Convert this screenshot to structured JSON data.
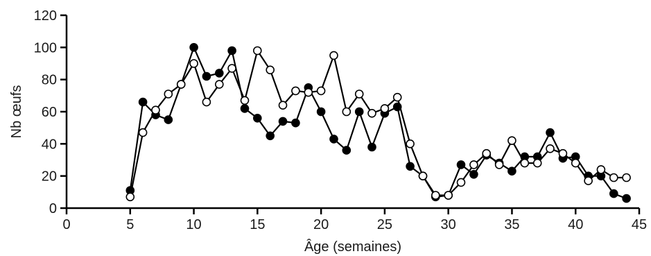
{
  "chart_data": {
    "type": "line",
    "xlabel": "Âge (semaines)",
    "ylabel": "Nb œufs",
    "xlim": [
      0,
      45
    ],
    "ylim": [
      0,
      120
    ],
    "xticks": [
      0,
      5,
      10,
      15,
      20,
      25,
      30,
      35,
      40,
      45
    ],
    "yticks": [
      0,
      20,
      40,
      60,
      80,
      100,
      120
    ],
    "grid": false,
    "series": [
      {
        "marker": "filled-circle",
        "color": "#000000",
        "x": [
          5,
          6,
          7,
          8,
          9,
          10,
          11,
          12,
          13,
          14,
          15,
          16,
          17,
          18,
          19,
          20,
          21,
          22,
          23,
          24,
          25,
          26,
          27,
          28,
          29,
          30,
          31,
          32,
          33,
          34,
          35,
          36,
          37,
          38,
          39,
          40,
          41,
          42,
          43,
          44
        ],
        "y": [
          11,
          66,
          58,
          55,
          77,
          100,
          82,
          84,
          98,
          62,
          56,
          45,
          54,
          53,
          75,
          60,
          43,
          36,
          60,
          38,
          59,
          63,
          26,
          20,
          7,
          8,
          27,
          21,
          33,
          28,
          23,
          32,
          32,
          47,
          31,
          32,
          20,
          20,
          9,
          6
        ]
      },
      {
        "marker": "open-circle",
        "color": "#000000",
        "x": [
          5,
          6,
          7,
          8,
          9,
          10,
          11,
          12,
          13,
          14,
          15,
          16,
          17,
          18,
          19,
          20,
          21,
          22,
          23,
          24,
          25,
          26,
          27,
          28,
          29,
          30,
          31,
          32,
          33,
          34,
          35,
          36,
          37,
          38,
          39,
          40,
          41,
          42,
          43,
          44
        ],
        "y": [
          7,
          47,
          61,
          71,
          77,
          90,
          66,
          77,
          87,
          67,
          98,
          86,
          64,
          73,
          72,
          73,
          95,
          60,
          71,
          59,
          62,
          69,
          40,
          20,
          8,
          8,
          16,
          27,
          34,
          27,
          42,
          28,
          28,
          37,
          34,
          28,
          17,
          24,
          19,
          19
        ]
      }
    ]
  }
}
